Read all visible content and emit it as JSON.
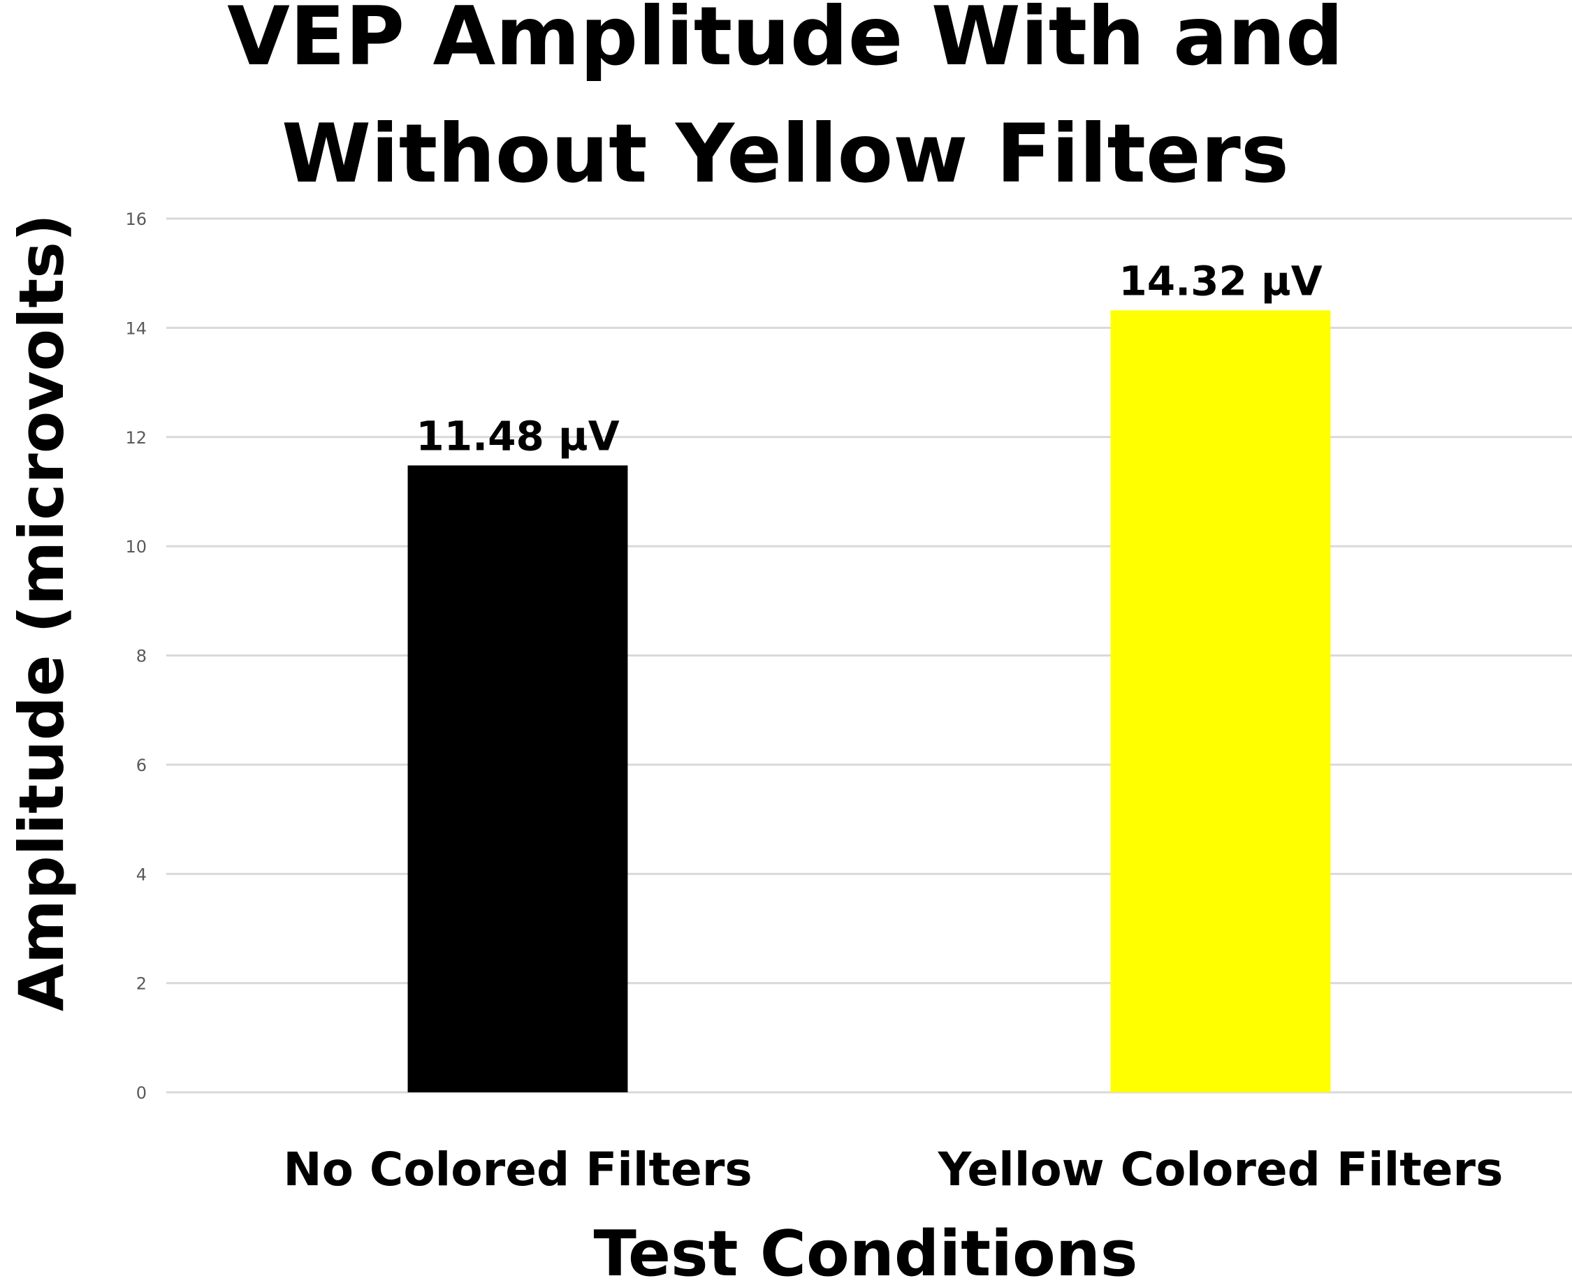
{
  "chart_data": {
    "type": "bar",
    "title_lines": [
      "VEP Amplitude With and",
      "Without Yellow Filters"
    ],
    "xlabel": "Test Conditions",
    "ylabel": "Amplitude (microvolts)",
    "categories": [
      "No Colored Filters",
      "Yellow Colored Filters"
    ],
    "values": [
      11.48,
      14.32
    ],
    "data_labels": [
      "11.48 µV",
      "14.32 µV"
    ],
    "bar_colors": [
      "#000000",
      "#ffff00"
    ],
    "ylim": [
      0,
      16
    ],
    "yticks": [
      0,
      2,
      4,
      6,
      8,
      10,
      12,
      14,
      16
    ],
    "grid": true,
    "legend": "none"
  }
}
